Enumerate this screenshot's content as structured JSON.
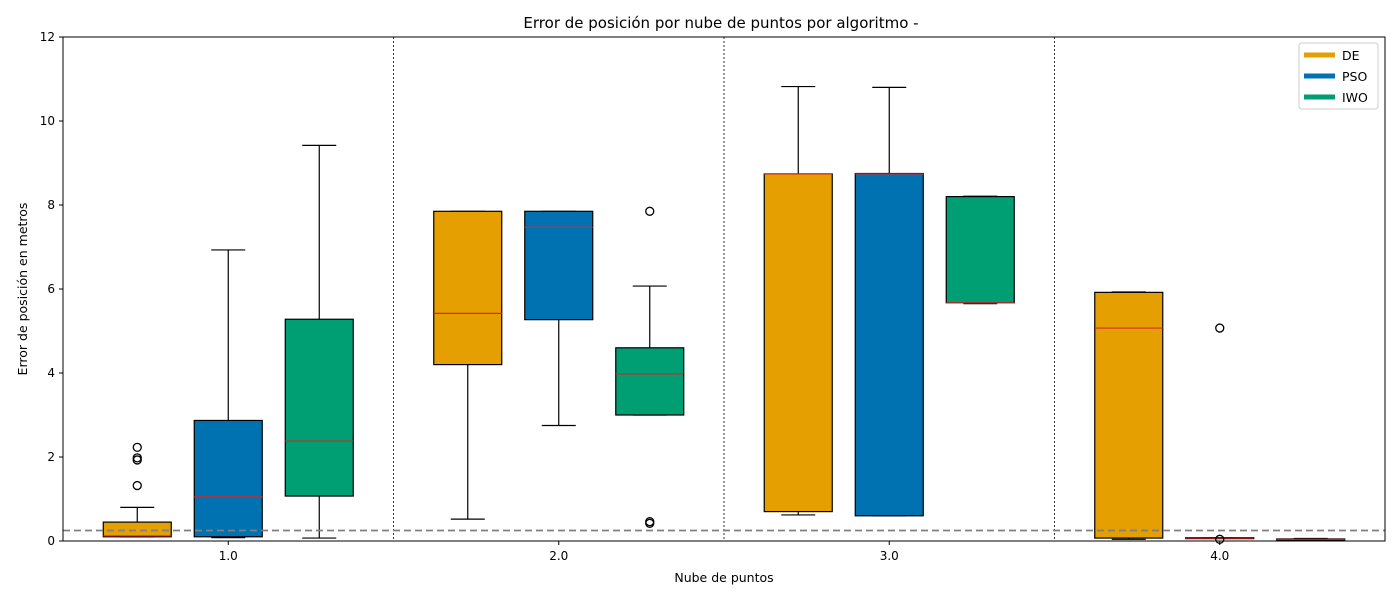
{
  "chart_data": {
    "type": "boxplot",
    "title": "Error de posición por nube de puntos por algoritmo -",
    "xlabel": "Nube de puntos",
    "ylabel": "Error de posición en metros",
    "ylim": [
      0,
      12
    ],
    "yticks": [
      "0",
      "2",
      "4",
      "6",
      "8",
      "10",
      "12"
    ],
    "categories": [
      "1.0",
      "2.0",
      "3.0",
      "4.0"
    ],
    "reference_line": 0.25,
    "legend_position": "top-right",
    "series": [
      {
        "name": "DE",
        "color": "#E69F00",
        "boxes": [
          {
            "whisker_low": 0.1,
            "q1": 0.1,
            "median": 0.12,
            "q3": 0.45,
            "whisker_high": 0.8,
            "outliers": [
              1.32,
              1.93,
              1.98,
              2.23
            ]
          },
          {
            "whisker_low": 0.52,
            "q1": 4.2,
            "median": 5.42,
            "q3": 7.85,
            "whisker_high": 7.85,
            "outliers": []
          },
          {
            "whisker_low": 0.62,
            "q1": 0.7,
            "median": 8.74,
            "q3": 8.74,
            "whisker_high": 10.82,
            "outliers": []
          },
          {
            "whisker_low": 0.04,
            "q1": 0.07,
            "median": 5.07,
            "q3": 5.92,
            "whisker_high": 5.93,
            "outliers": []
          }
        ]
      },
      {
        "name": "PSO",
        "color": "#0072B2",
        "boxes": [
          {
            "whisker_low": 0.08,
            "q1": 0.1,
            "median": 1.05,
            "q3": 2.87,
            "whisker_high": 6.93,
            "outliers": []
          },
          {
            "whisker_low": 2.75,
            "q1": 5.27,
            "median": 7.47,
            "q3": 7.85,
            "whisker_high": 7.85,
            "outliers": []
          },
          {
            "whisker_low": 0.6,
            "q1": 0.6,
            "median": 8.74,
            "q3": 8.75,
            "whisker_high": 10.8,
            "outliers": []
          },
          {
            "whisker_low": 0.07,
            "q1": 0.07,
            "median": 0.07,
            "q3": 0.08,
            "whisker_high": 0.08,
            "outliers": [
              0.04,
              5.07
            ]
          }
        ]
      },
      {
        "name": "IWO",
        "color": "#009E73",
        "boxes": [
          {
            "whisker_low": 0.07,
            "q1": 1.07,
            "median": 2.38,
            "q3": 5.28,
            "whisker_high": 9.42,
            "outliers": []
          },
          {
            "whisker_low": 3.0,
            "q1": 3.0,
            "median": 3.98,
            "q3": 4.6,
            "whisker_high": 6.07,
            "outliers": [
              0.42,
              0.46,
              7.85
            ]
          },
          {
            "whisker_low": 5.65,
            "q1": 5.67,
            "median": 5.67,
            "q3": 8.2,
            "whisker_high": 8.21,
            "outliers": []
          },
          {
            "whisker_low": 0.03,
            "q1": 0.03,
            "median": 0.04,
            "q3": 0.05,
            "whisker_high": 0.06,
            "outliers": []
          }
        ]
      }
    ]
  }
}
